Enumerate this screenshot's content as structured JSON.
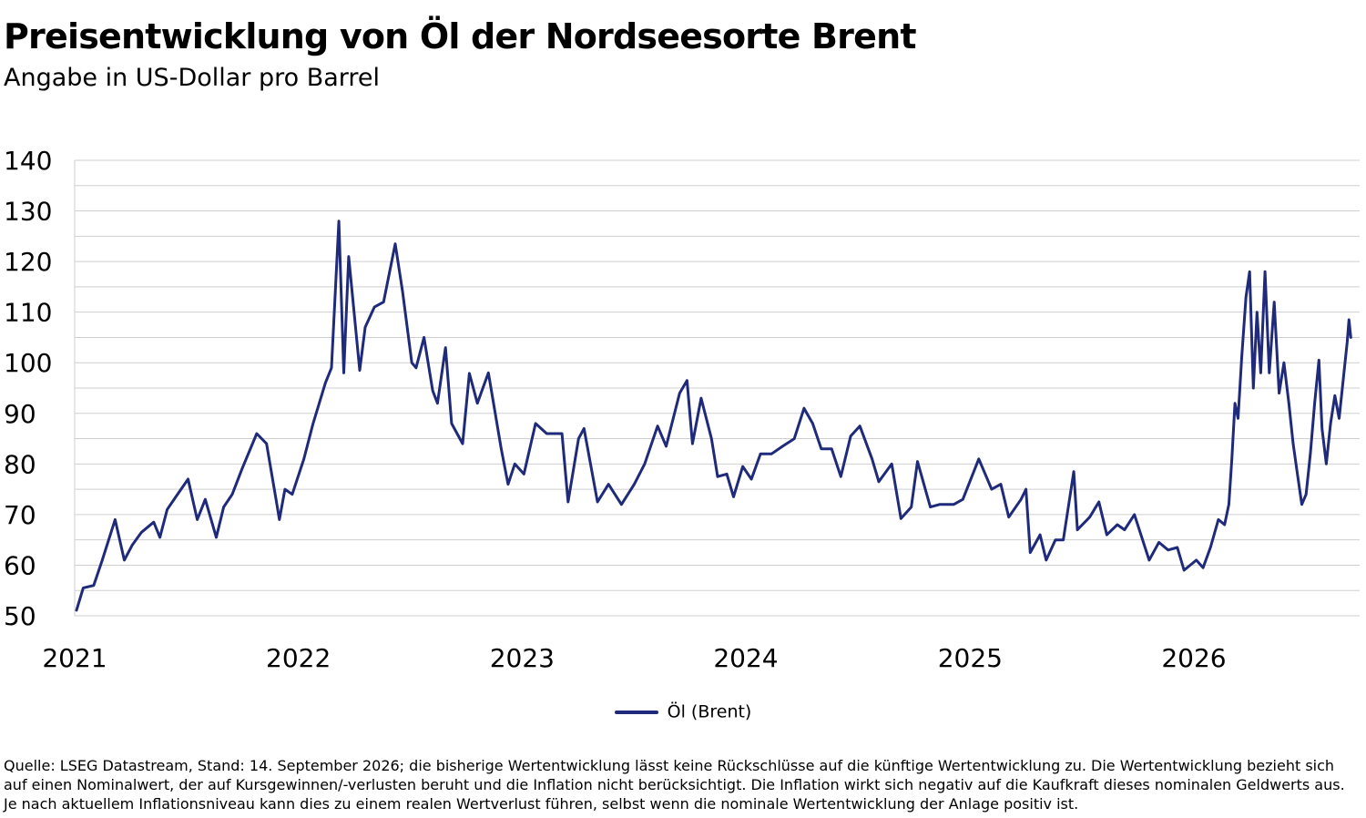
{
  "title": "Preisentwicklung von Öl der Nordseesorte Brent",
  "subtitle": "Angabe in US-Dollar pro Barrel",
  "colors": {
    "series": "#1f2a7a",
    "grid": "#cfcfcf"
  },
  "source": "Quelle: LSEG Datastream, Stand: 14. September 2026; die bisherige Wertentwicklung lässt keine Rückschlüsse auf die künftige Wertentwicklung zu. Die Wertentwicklung bezieht sich auf einen Nominalwert, der auf Kursgewinnen/-verlusten beruht und die Inflation nicht berücksichtigt. Die Inflation wirkt sich negativ auf die Kaufkraft dieses nominalen Geldwerts aus. Je nach aktuellem Inflationsniveau kann dies zu einem realen Wertverlust führen, selbst wenn die nominale Wertentwicklung der Anlage positiv ist.",
  "chart_data": {
    "type": "line",
    "title": "Preisentwicklung von Öl der Nordseesorte Brent",
    "subtitle": "Angabe in US-Dollar pro Barrel",
    "xlabel": "",
    "ylabel": "",
    "ylim": [
      50,
      140
    ],
    "xlim": [
      "2021-01-01",
      "2026-09-14"
    ],
    "yticks": [
      50,
      60,
      70,
      80,
      90,
      100,
      110,
      120,
      130,
      140
    ],
    "xticks": [
      "2021",
      "2022",
      "2023",
      "2024",
      "2025",
      "2026"
    ],
    "grid": true,
    "legend_position": "bottom",
    "series": [
      {
        "name": "Öl (Brent)",
        "color": "#1f2a7a",
        "points": [
          [
            "2021-01-04",
            51.1
          ],
          [
            "2021-01-15",
            55.5
          ],
          [
            "2021-02-01",
            56.0
          ],
          [
            "2021-02-15",
            61.0
          ],
          [
            "2021-03-08",
            69.0
          ],
          [
            "2021-03-23",
            61.0
          ],
          [
            "2021-04-05",
            64.0
          ],
          [
            "2021-04-20",
            66.5
          ],
          [
            "2021-05-10",
            68.5
          ],
          [
            "2021-05-20",
            65.5
          ],
          [
            "2021-06-01",
            71.0
          ],
          [
            "2021-06-15",
            73.5
          ],
          [
            "2021-07-05",
            77.0
          ],
          [
            "2021-07-20",
            69.0
          ],
          [
            "2021-08-02",
            73.0
          ],
          [
            "2021-08-20",
            65.5
          ],
          [
            "2021-09-01",
            71.5
          ],
          [
            "2021-09-15",
            74.0
          ],
          [
            "2021-10-01",
            79.0
          ],
          [
            "2021-10-25",
            86.0
          ],
          [
            "2021-11-10",
            84.0
          ],
          [
            "2021-11-26",
            72.7
          ],
          [
            "2021-12-01",
            69.0
          ],
          [
            "2021-12-10",
            75.0
          ],
          [
            "2021-12-22",
            74.0
          ],
          [
            "2022-01-10",
            81.0
          ],
          [
            "2022-01-25",
            88.0
          ],
          [
            "2022-02-14",
            96.0
          ],
          [
            "2022-02-24",
            99.0
          ],
          [
            "2022-03-08",
            128.0
          ],
          [
            "2022-03-16",
            98.0
          ],
          [
            "2022-03-24",
            121.0
          ],
          [
            "2022-04-11",
            98.5
          ],
          [
            "2022-04-20",
            107.0
          ],
          [
            "2022-05-05",
            111.0
          ],
          [
            "2022-05-20",
            112.0
          ],
          [
            "2022-06-08",
            123.5
          ],
          [
            "2022-06-20",
            114.0
          ],
          [
            "2022-07-05",
            100.0
          ],
          [
            "2022-07-12",
            99.0
          ],
          [
            "2022-07-25",
            105.0
          ],
          [
            "2022-08-08",
            94.5
          ],
          [
            "2022-08-16",
            92.0
          ],
          [
            "2022-08-29",
            103.0
          ],
          [
            "2022-09-08",
            88.0
          ],
          [
            "2022-09-26",
            84.0
          ],
          [
            "2022-10-07",
            97.9
          ],
          [
            "2022-10-20",
            92.0
          ],
          [
            "2022-11-07",
            98.0
          ],
          [
            "2022-11-28",
            83.0
          ],
          [
            "2022-12-09",
            76.0
          ],
          [
            "2022-12-20",
            80.0
          ],
          [
            "2023-01-04",
            78.0
          ],
          [
            "2023-01-23",
            88.0
          ],
          [
            "2023-02-10",
            86.0
          ],
          [
            "2023-03-07",
            86.0
          ],
          [
            "2023-03-17",
            72.5
          ],
          [
            "2023-04-03",
            85.0
          ],
          [
            "2023-04-12",
            87.0
          ],
          [
            "2023-05-04",
            72.5
          ],
          [
            "2023-05-22",
            76.0
          ],
          [
            "2023-06-12",
            72.0
          ],
          [
            "2023-07-03",
            76.0
          ],
          [
            "2023-07-20",
            80.0
          ],
          [
            "2023-08-10",
            87.5
          ],
          [
            "2023-08-24",
            83.5
          ],
          [
            "2023-09-15",
            94.0
          ],
          [
            "2023-09-27",
            96.5
          ],
          [
            "2023-10-06",
            84.0
          ],
          [
            "2023-10-20",
            93.0
          ],
          [
            "2023-11-06",
            85.0
          ],
          [
            "2023-11-16",
            77.5
          ],
          [
            "2023-12-01",
            78.0
          ],
          [
            "2023-12-12",
            73.5
          ],
          [
            "2023-12-27",
            79.5
          ],
          [
            "2024-01-10",
            77.0
          ],
          [
            "2024-01-25",
            82.0
          ],
          [
            "2024-02-12",
            82.0
          ],
          [
            "2024-03-01",
            83.5
          ],
          [
            "2024-03-20",
            85.0
          ],
          [
            "2024-04-05",
            91.0
          ],
          [
            "2024-04-19",
            88.0
          ],
          [
            "2024-05-03",
            83.0
          ],
          [
            "2024-05-20",
            83.0
          ],
          [
            "2024-06-04",
            77.5
          ],
          [
            "2024-06-20",
            85.5
          ],
          [
            "2024-07-05",
            87.5
          ],
          [
            "2024-07-25",
            81.0
          ],
          [
            "2024-08-05",
            76.5
          ],
          [
            "2024-08-26",
            80.0
          ],
          [
            "2024-09-10",
            69.2
          ],
          [
            "2024-09-27",
            71.5
          ],
          [
            "2024-10-07",
            80.5
          ],
          [
            "2024-10-28",
            71.5
          ],
          [
            "2024-11-12",
            72.0
          ],
          [
            "2024-12-05",
            72.0
          ],
          [
            "2024-12-20",
            73.0
          ],
          [
            "2025-01-15",
            81.0
          ],
          [
            "2025-02-05",
            75.0
          ],
          [
            "2025-02-20",
            76.0
          ],
          [
            "2025-03-05",
            69.5
          ],
          [
            "2025-03-25",
            73.0
          ],
          [
            "2025-04-02",
            75.0
          ],
          [
            "2025-04-09",
            62.5
          ],
          [
            "2025-04-25",
            66.0
          ],
          [
            "2025-05-05",
            61.0
          ],
          [
            "2025-05-20",
            65.0
          ],
          [
            "2025-06-02",
            65.0
          ],
          [
            "2025-06-19",
            78.5
          ],
          [
            "2025-06-25",
            67.0
          ],
          [
            "2025-07-15",
            69.5
          ],
          [
            "2025-07-30",
            72.5
          ],
          [
            "2025-08-12",
            66.0
          ],
          [
            "2025-08-29",
            68.0
          ],
          [
            "2025-09-10",
            67.0
          ],
          [
            "2025-09-26",
            70.0
          ],
          [
            "2025-10-08",
            65.5
          ],
          [
            "2025-10-20",
            61.0
          ],
          [
            "2025-11-05",
            64.5
          ],
          [
            "2025-11-20",
            63.0
          ],
          [
            "2025-12-05",
            63.5
          ],
          [
            "2025-12-16",
            59.0
          ],
          [
            "2026-01-05",
            61.0
          ],
          [
            "2026-01-16",
            59.5
          ],
          [
            "2026-01-28",
            63.5
          ],
          [
            "2026-02-10",
            69.0
          ],
          [
            "2026-02-20",
            68.0
          ],
          [
            "2026-02-27",
            72.0
          ],
          [
            "2026-03-04",
            81.0
          ],
          [
            "2026-03-09",
            92.0
          ],
          [
            "2026-03-14",
            89.0
          ],
          [
            "2026-03-20",
            101.0
          ],
          [
            "2026-03-27",
            113.0
          ],
          [
            "2026-04-02",
            118.0
          ],
          [
            "2026-04-08",
            95.0
          ],
          [
            "2026-04-14",
            110.0
          ],
          [
            "2026-04-20",
            98.0
          ],
          [
            "2026-04-27",
            118.0
          ],
          [
            "2026-05-04",
            98.0
          ],
          [
            "2026-05-12",
            112.0
          ],
          [
            "2026-05-20",
            94.0
          ],
          [
            "2026-05-28",
            100.0
          ],
          [
            "2026-06-05",
            92.0
          ],
          [
            "2026-06-12",
            84.0
          ],
          [
            "2026-06-19",
            78.0
          ],
          [
            "2026-06-26",
            72.0
          ],
          [
            "2026-07-03",
            74.0
          ],
          [
            "2026-07-10",
            82.0
          ],
          [
            "2026-07-17",
            92.0
          ],
          [
            "2026-07-24",
            100.5
          ],
          [
            "2026-07-29",
            87.0
          ],
          [
            "2026-08-05",
            80.0
          ],
          [
            "2026-08-12",
            88.0
          ],
          [
            "2026-08-19",
            93.5
          ],
          [
            "2026-08-26",
            89.0
          ],
          [
            "2026-09-02",
            97.0
          ],
          [
            "2026-09-08",
            104.0
          ],
          [
            "2026-09-11",
            108.5
          ],
          [
            "2026-09-14",
            105.0
          ]
        ]
      }
    ]
  }
}
